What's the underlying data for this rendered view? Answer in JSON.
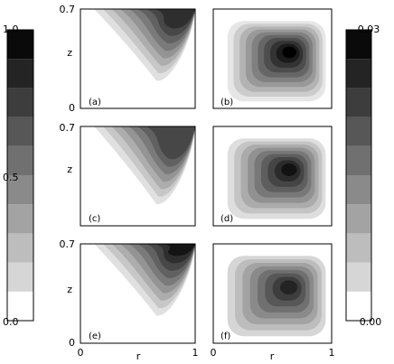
{
  "colorbar_left": {
    "labels": [
      "1.0",
      "0.5",
      "0.0"
    ]
  },
  "colorbar_right": {
    "labels": [
      "0.03",
      "0.00"
    ]
  },
  "rows": [
    {
      "y_top": "0.7",
      "y_bottom": "0",
      "y_label": "z",
      "panels": [
        "(a)",
        "(b)"
      ]
    },
    {
      "y_top": "0.7",
      "y_label": "z",
      "panels": [
        "(c)",
        "(d)"
      ]
    },
    {
      "y_top": "0.7",
      "y_bottom": "0",
      "y_label": "z",
      "panels": [
        "(e)",
        "(f)"
      ]
    }
  ],
  "x_axis": {
    "left": {
      "ticks": [
        "0",
        "1"
      ],
      "label": "r"
    },
    "right": {
      "ticks": [
        "0",
        "1"
      ],
      "label": "r"
    }
  }
}
